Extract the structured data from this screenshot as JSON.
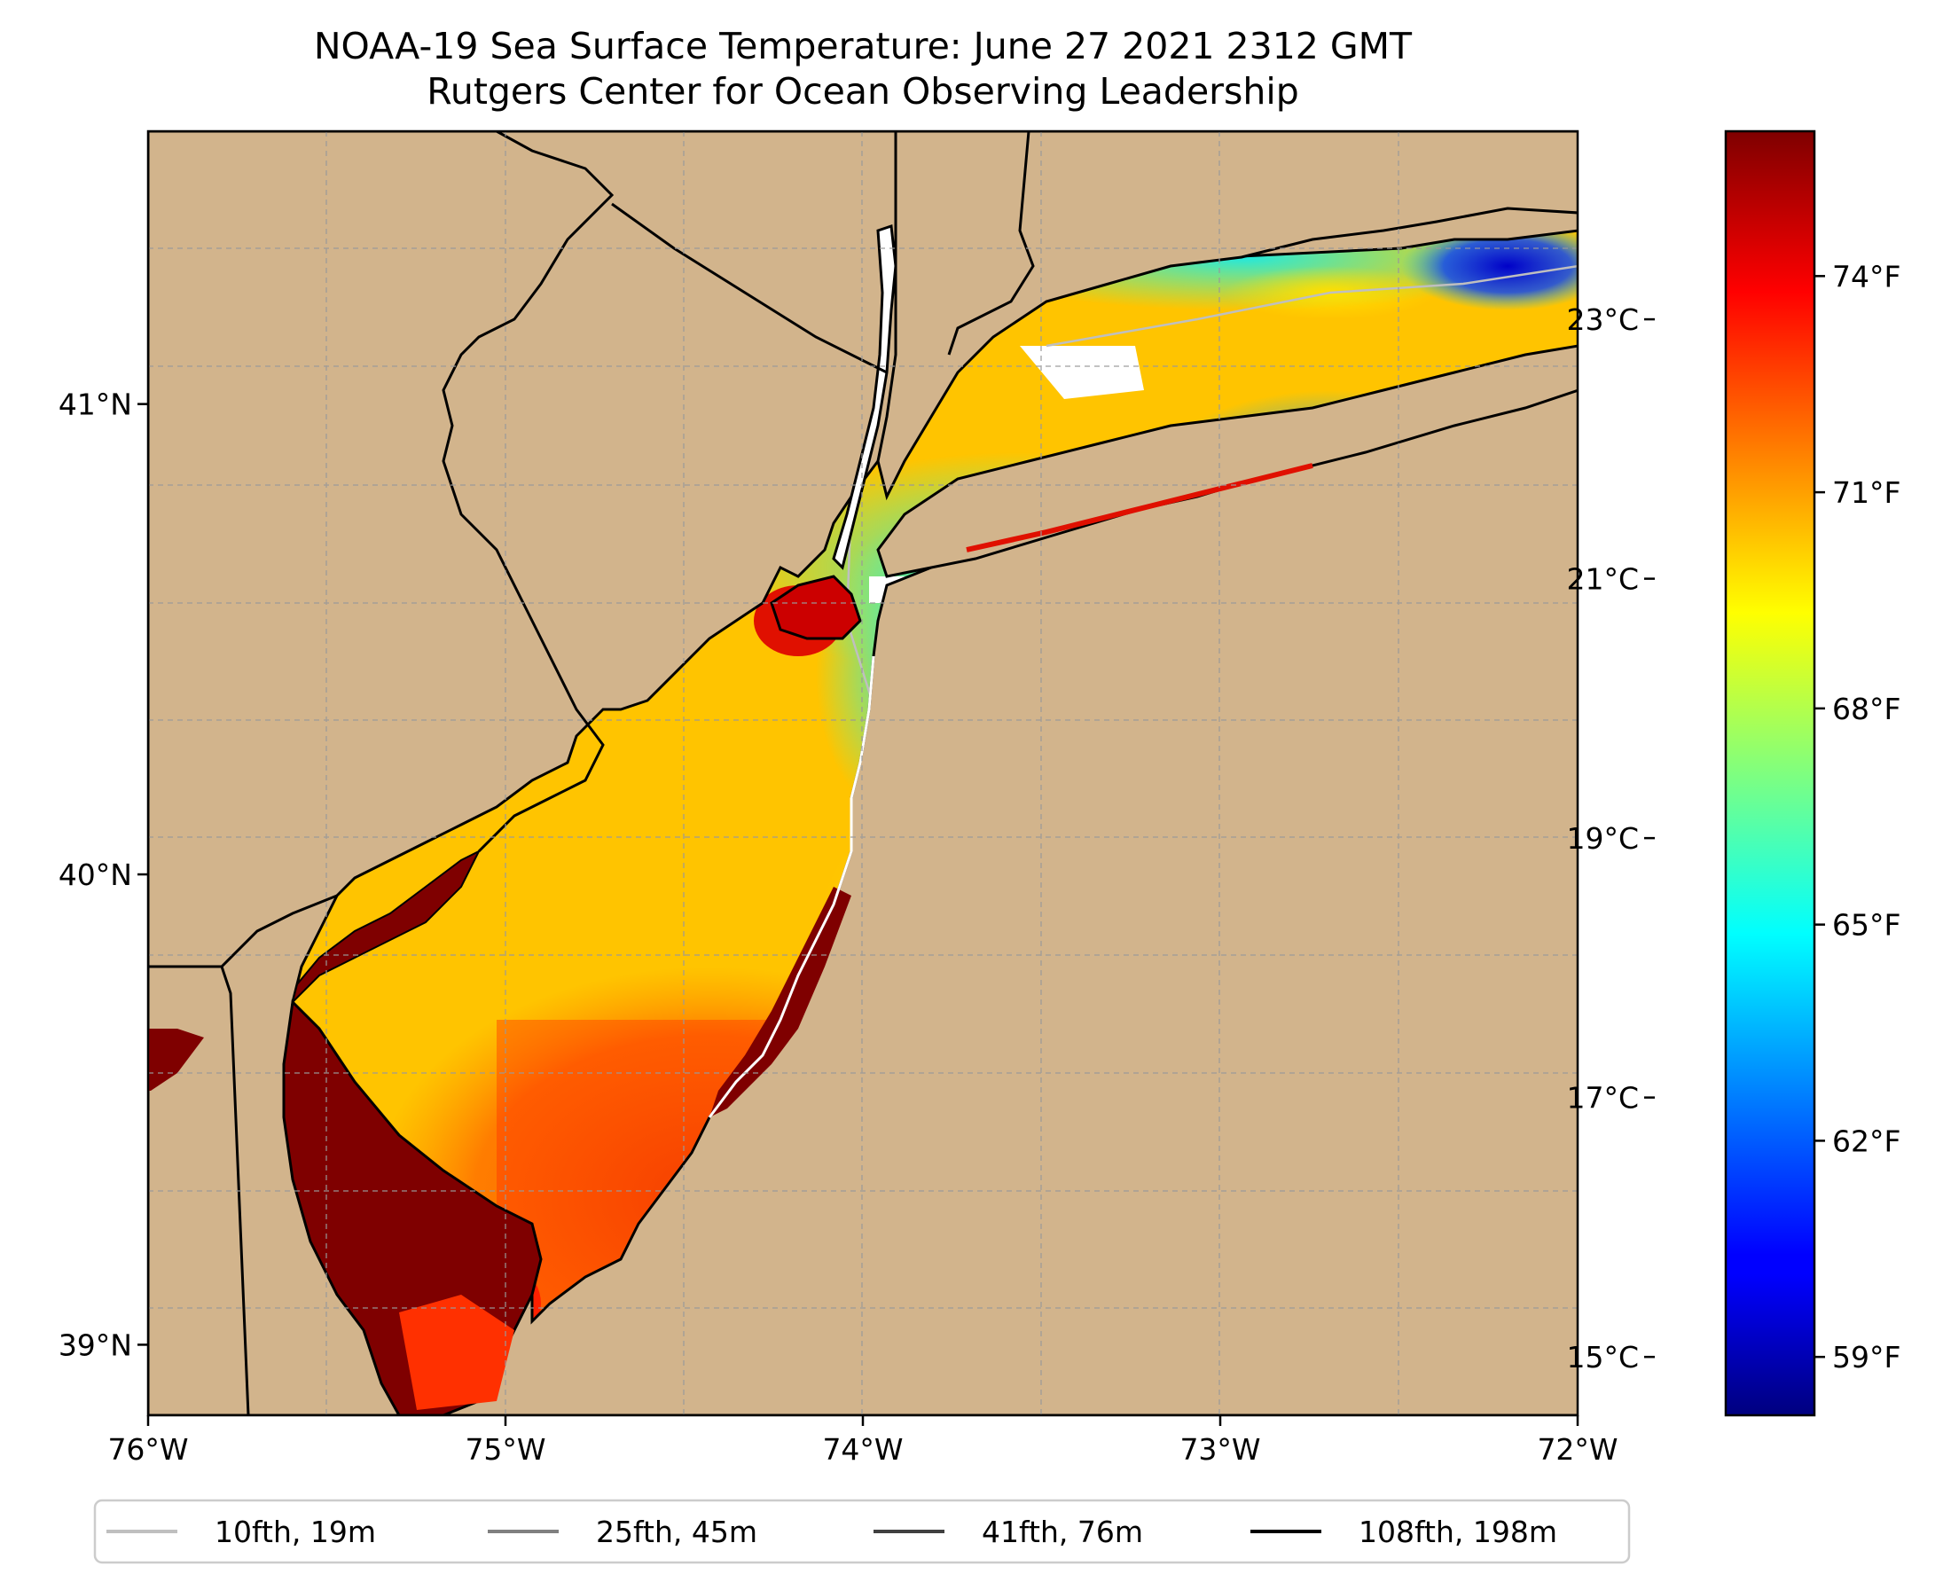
{
  "title": {
    "line1": "NOAA-19 Sea Surface Temperature: June 27 2021 2312 GMT",
    "line2": "Rutgers Center for Ocean Observing Leadership"
  },
  "map": {
    "lon_range": [
      -76,
      -72
    ],
    "lat_range": [
      38.85,
      41.58
    ],
    "x_ticks": [
      {
        "value": -76,
        "label": "76°W"
      },
      {
        "value": -75,
        "label": "75°W"
      },
      {
        "value": -74,
        "label": "74°W"
      },
      {
        "value": -73,
        "label": "73°W"
      },
      {
        "value": -72,
        "label": "72°W"
      }
    ],
    "y_ticks": [
      {
        "value": 39,
        "label": "39°N"
      },
      {
        "value": 40,
        "label": "40°N"
      },
      {
        "value": 41,
        "label": "41°N"
      }
    ],
    "grid": true,
    "land_color": "#d2b48c",
    "coast_color": "#000000",
    "missing_data_color": "#ffffff"
  },
  "colorbar": {
    "colormap": "jet",
    "celsius_ticks": [
      {
        "value": 15,
        "label": "15°C"
      },
      {
        "value": 17,
        "label": "17°C"
      },
      {
        "value": 19,
        "label": "19°C"
      },
      {
        "value": 21,
        "label": "21°C"
      },
      {
        "value": 23,
        "label": "23°C"
      }
    ],
    "fahrenheit_ticks": [
      {
        "value": 59,
        "label": "59°F"
      },
      {
        "value": 62,
        "label": "62°F"
      },
      {
        "value": 65,
        "label": "65°F"
      },
      {
        "value": 68,
        "label": "68°F"
      },
      {
        "value": 71,
        "label": "71°F"
      },
      {
        "value": 74,
        "label": "74°F"
      }
    ],
    "range_c": [
      14.55,
      24.45
    ]
  },
  "legend": {
    "placement": "bottom",
    "items": [
      {
        "label": "10fth, 19m",
        "color": "#bfbfbf"
      },
      {
        "label": "25fth, 45m",
        "color": "#808080"
      },
      {
        "label": "41fth, 76m",
        "color": "#404040"
      },
      {
        "label": "108fth, 198m",
        "color": "#000000"
      }
    ]
  }
}
